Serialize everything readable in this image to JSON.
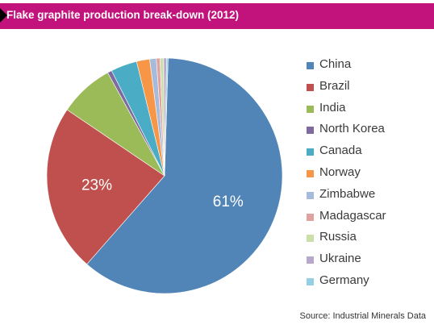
{
  "header": {
    "title": "Flake graphite production break-down (2012)"
  },
  "footer": {
    "source": "Source: Industrial Minerals Data"
  },
  "chart_data": {
    "type": "pie",
    "title": "Flake graphite production break-down (2012)",
    "legend_position": "right",
    "slices": [
      {
        "label": "China",
        "value": 61,
        "color": "#5185b8",
        "data_label": "61%"
      },
      {
        "label": "Brazil",
        "value": 23,
        "color": "#c0504d",
        "data_label": "23%"
      },
      {
        "label": "India",
        "value": 7.5,
        "color": "#9bbb59",
        "data_label": ""
      },
      {
        "label": "North Korea",
        "value": 0.6,
        "color": "#7e6a9f",
        "data_label": ""
      },
      {
        "label": "Canada",
        "value": 3.6,
        "color": "#4bacc6",
        "data_label": ""
      },
      {
        "label": "Norway",
        "value": 1.8,
        "color": "#f79646",
        "data_label": ""
      },
      {
        "label": "Zimbabwe",
        "value": 0.9,
        "color": "#a6bbdc",
        "data_label": ""
      },
      {
        "label": "Madagascar",
        "value": 0.5,
        "color": "#e0a2a0",
        "data_label": ""
      },
      {
        "label": "Russia",
        "value": 0.5,
        "color": "#cddfa8",
        "data_label": ""
      },
      {
        "label": "Ukraine",
        "value": 0.4,
        "color": "#b8a8cc",
        "data_label": ""
      },
      {
        "label": "Germany",
        "value": 0.2,
        "color": "#94cfe3",
        "data_label": ""
      }
    ]
  }
}
